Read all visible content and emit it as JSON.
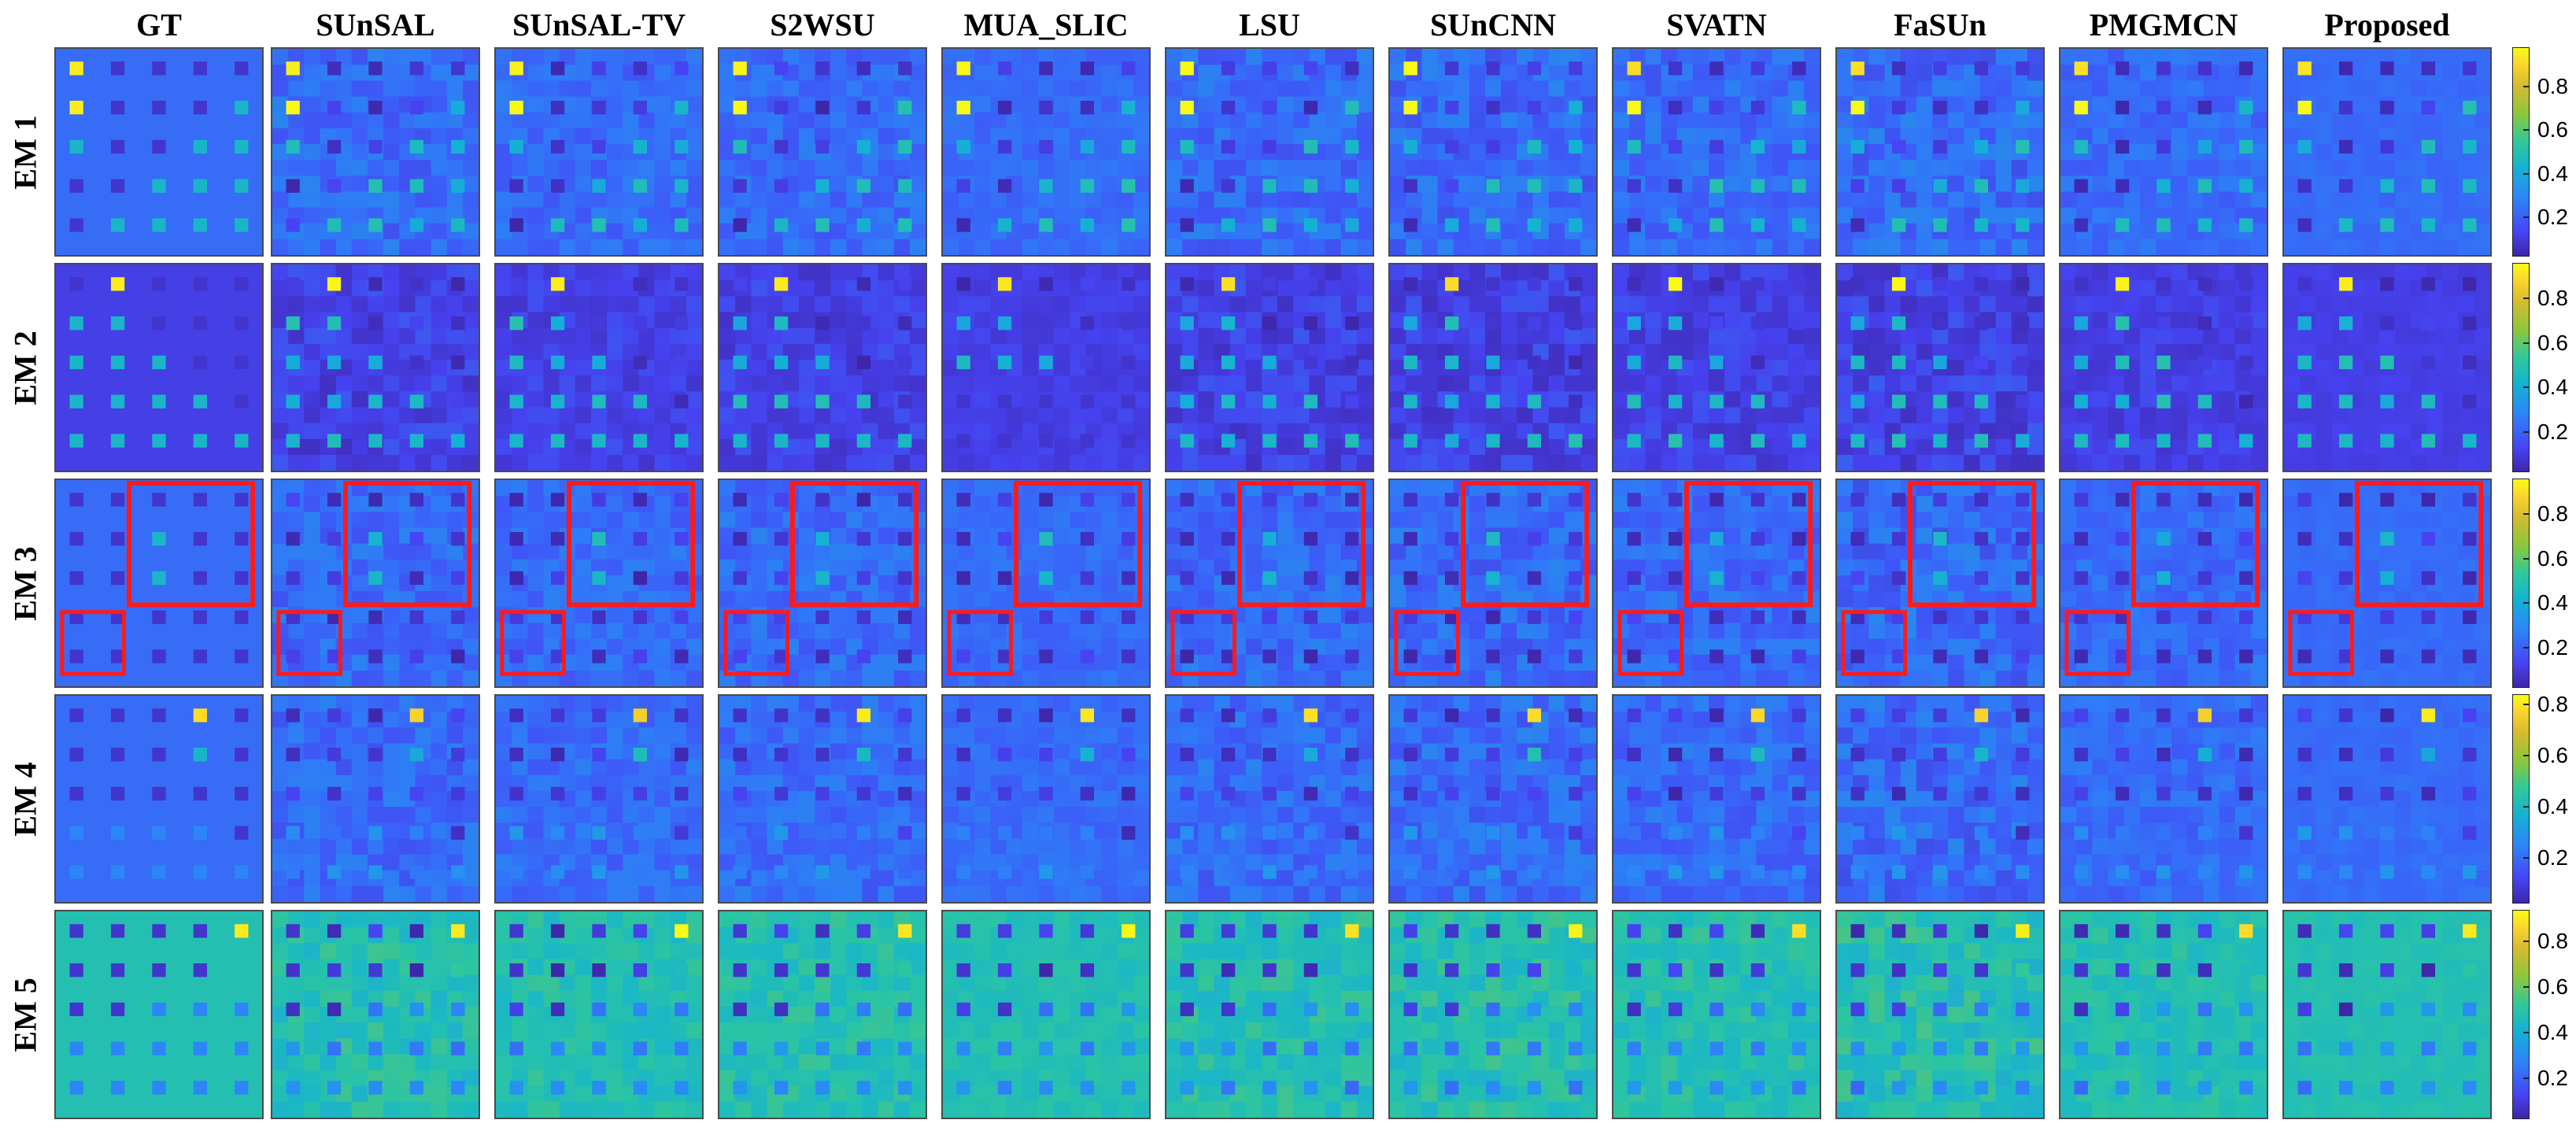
{
  "figure": {
    "columns": [
      "GT",
      "SUnSAL",
      "SUnSAL-TV",
      "S2WSU",
      "MUA_SLIC",
      "LSU",
      "SUnCNN",
      "SVATN",
      "FaSUn",
      "PMGMCN",
      "Proposed"
    ],
    "rows": [
      {
        "label": "EM 1",
        "ticks": [
          "0.8",
          "0.6",
          "0.4",
          "0.2"
        ],
        "tick_values": [
          0.8,
          0.6,
          0.4,
          0.2
        ],
        "range": [
          0.02,
          0.98
        ]
      },
      {
        "label": "EM 2",
        "ticks": [
          "0.8",
          "0.6",
          "0.4",
          "0.2"
        ],
        "tick_values": [
          0.8,
          0.6,
          0.4,
          0.2
        ],
        "range": [
          0.02,
          0.96
        ]
      },
      {
        "label": "EM 3",
        "ticks": [
          "0.8",
          "0.6",
          "0.4",
          "0.2"
        ],
        "tick_values": [
          0.8,
          0.6,
          0.4,
          0.2
        ],
        "range": [
          0.02,
          0.96
        ]
      },
      {
        "label": "EM 4",
        "ticks": [
          "0.8",
          "0.6",
          "0.4",
          "0.2"
        ],
        "tick_values": [
          0.8,
          0.6,
          0.4,
          0.2
        ],
        "range": [
          0.02,
          0.84
        ]
      },
      {
        "label": "EM 5",
        "ticks": [
          "0.8",
          "0.6",
          "0.4",
          "0.2"
        ],
        "tick_values": [
          0.8,
          0.6,
          0.4,
          0.2
        ],
        "range": [
          0.02,
          0.94
        ]
      }
    ],
    "highlight_row": "EM 3",
    "highlight_color": "#ff1a1a",
    "colormap": [
      "#3e26a8",
      "#4745f6",
      "#2c86f8",
      "#15b1d4",
      "#30c89a",
      "#8ac83d",
      "#d7ba2f",
      "#fbd52e",
      "#f9fb15"
    ]
  }
}
